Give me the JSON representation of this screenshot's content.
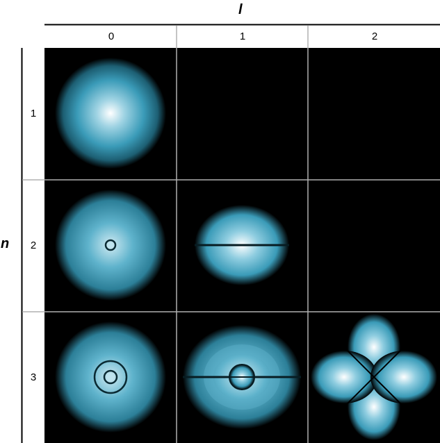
{
  "column_axis": {
    "label": "l",
    "ticks": [
      "0",
      "1",
      "2"
    ]
  },
  "row_axis": {
    "label": "n",
    "ticks": [
      "1",
      "2",
      "3"
    ]
  },
  "colors": {
    "background": "#000000",
    "orbital": "#3a9bb8",
    "orbital_center": "#ffffff",
    "grid": "#b0b0b0"
  },
  "cells": [
    {
      "n": 1,
      "l": 0,
      "shape": "sphere"
    },
    {
      "n": 2,
      "l": 0,
      "shape": "sphere-one-radial-node"
    },
    {
      "n": 2,
      "l": 1,
      "shape": "two-lobes-planar-node"
    },
    {
      "n": 3,
      "l": 0,
      "shape": "sphere-two-radial-nodes"
    },
    {
      "n": 3,
      "l": 1,
      "shape": "two-lobes-planar-and-radial-node"
    },
    {
      "n": 3,
      "l": 2,
      "shape": "cloverleaf"
    }
  ]
}
